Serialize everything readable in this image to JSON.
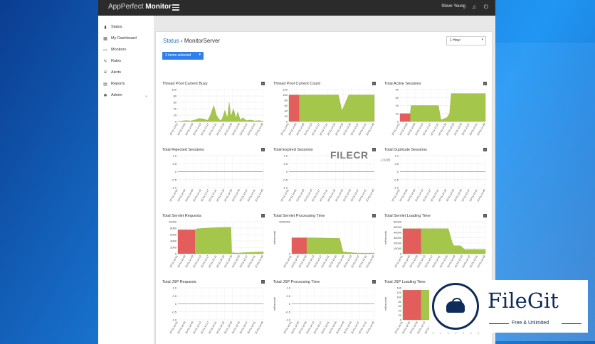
{
  "app": {
    "brand_light": "AppPerfect",
    "brand_bold": "Monitor",
    "user": "Steve Young"
  },
  "icons": {
    "menu": "hamburger-icon",
    "bell": "bell-icon",
    "power": "power-icon"
  },
  "sidebar": {
    "items": [
      {
        "label": "Status",
        "icon": "▮"
      },
      {
        "label": "My Dashboard",
        "icon": "▦"
      },
      {
        "label": "Monitors",
        "icon": "▭"
      },
      {
        "label": "Rules",
        "icon": "✎"
      },
      {
        "label": "Alerts",
        "icon": "⍾"
      },
      {
        "label": "Reports",
        "icon": "▤"
      },
      {
        "label": "Admin",
        "icon": "✱",
        "chevron": "⌄"
      }
    ]
  },
  "breadcrumb": {
    "link": "Status",
    "sep": "›",
    "current": "MonitorServer"
  },
  "range": {
    "value": "1 Hour",
    "arrow": "▾"
  },
  "selection": {
    "label": "3 items selected",
    "arrow": "▾"
  },
  "colors": {
    "green": "#a4c64a",
    "red": "#e35d5d"
  },
  "watermark": {
    "filecr": "FILECR",
    "filecr_sub": ".com",
    "filegit": "FileGit",
    "filegit_tag": "Free & Unlimited"
  },
  "xticks": [
    "20-01-14:01",
    "20-01-14:05",
    "20-01-14:09",
    "20-01-14:13",
    "20-01-14:17",
    "20-01-14:21",
    "20-01-14:25",
    "20-01-14:29",
    "20-01-14:33",
    "20-01-14:37",
    "20-01-14:41",
    "20-01-14:46"
  ],
  "charts": [
    {
      "title": "Thread Pool Current Busy",
      "type": "area",
      "ylim": [
        0,
        100
      ],
      "yticks": [
        "100",
        "80",
        "60",
        "40",
        "20",
        "0"
      ],
      "x": [
        0,
        0.05,
        0.1,
        0.15,
        0.2,
        0.25,
        0.3,
        0.35,
        0.38,
        0.42,
        0.45,
        0.48,
        0.5,
        0.52,
        0.55,
        0.58,
        0.6,
        0.62,
        0.65,
        0.68,
        0.7,
        0.73,
        0.76,
        0.8,
        0.85,
        0.9,
        0.95,
        1
      ],
      "values": [
        0,
        2,
        3,
        2,
        5,
        10,
        8,
        4,
        20,
        50,
        20,
        8,
        3,
        10,
        35,
        10,
        60,
        15,
        40,
        10,
        30,
        5,
        12,
        3,
        5,
        2,
        3,
        1
      ]
    },
    {
      "title": "Thread Pool Current Count",
      "type": "area",
      "ylim": [
        0,
        120
      ],
      "yticks": [
        "120",
        "100",
        "80",
        "60",
        "40",
        "20",
        "0"
      ],
      "x": [
        0,
        0.1,
        0.12,
        0.5,
        0.58,
        0.62,
        0.7,
        0.74,
        1
      ],
      "values": [
        100,
        100,
        100,
        100,
        100,
        40,
        100,
        100,
        100
      ],
      "red": [
        0,
        0.12
      ]
    },
    {
      "title": "Total Active Sessions",
      "type": "area",
      "ylim": [
        0,
        40
      ],
      "yticks": [
        "40",
        "30",
        "20",
        "10",
        "0"
      ],
      "x": [
        0,
        0.12,
        0.13,
        0.45,
        0.48,
        0.55,
        0.58,
        0.6,
        1
      ],
      "values": [
        10,
        10,
        20,
        20,
        2,
        5,
        10,
        35,
        35
      ],
      "red": [
        0,
        0.12
      ]
    },
    {
      "title": "Total Rejected Sessions",
      "type": "flat",
      "ylim": [
        -1,
        1
      ],
      "yticks": [
        "1.0",
        "0.5",
        "0",
        "-0.5",
        "-1.0"
      ]
    },
    {
      "title": "Total Expired Sessions",
      "type": "flat",
      "ylim": [
        -1,
        1
      ],
      "yticks": [
        "1.0",
        "0.5",
        "0",
        "-0.5",
        "-1.0"
      ]
    },
    {
      "title": "Total Duplicate Sessions",
      "type": "flat",
      "ylim": [
        -1,
        1
      ],
      "yticks": [
        "1.0",
        "0.5",
        "0",
        "-0.5",
        "-1.0"
      ]
    },
    {
      "title": "Total Servlet Requests",
      "type": "area",
      "ylim": [
        0,
        10000
      ],
      "yticks": [
        "10000",
        "8000",
        "6000",
        "4000",
        "2000",
        "0"
      ],
      "x": [
        0,
        0.2,
        0.22,
        0.45,
        0.62,
        0.63,
        0.7,
        0.8,
        0.9,
        1
      ],
      "values": [
        7500,
        7500,
        7800,
        8200,
        8300,
        300,
        200,
        400,
        500,
        600
      ],
      "red": [
        0,
        0.2
      ]
    },
    {
      "title": "Total Servlet Processing Time",
      "type": "area",
      "ylim": [
        0,
        5000000
      ],
      "yticks": [
        "5000000",
        "0"
      ],
      "ylabel": "milliseconds",
      "x": [
        0,
        0.18,
        0.2,
        0.58,
        0.62,
        0.7,
        0.8,
        1
      ],
      "values": [
        2500000,
        2500000,
        2500000,
        2400000,
        300000,
        200000,
        100000,
        100000
      ],
      "red": [
        0,
        0.18
      ]
    },
    {
      "title": "Total Servlet Loading Time",
      "type": "area",
      "ylim": [
        0,
        60000
      ],
      "yticks": [
        "60000",
        "50000",
        "40000",
        "30000",
        "20000",
        "10000",
        "0"
      ],
      "ylabel": "milliseconds",
      "x": [
        0,
        0.22,
        0.24,
        0.55,
        0.6,
        0.62,
        0.7,
        0.75,
        1
      ],
      "values": [
        47000,
        47000,
        47000,
        47000,
        20000,
        15000,
        15000,
        8000,
        8000
      ],
      "red": [
        0,
        0.22
      ]
    },
    {
      "title": "Total JSP Requests",
      "type": "flat",
      "ylim": [
        -1,
        1
      ],
      "yticks": [
        "1.0",
        "0.5",
        "0",
        "-0.5",
        "-1.0"
      ]
    },
    {
      "title": "Total JSP Processing Time",
      "type": "flat",
      "ylim": [
        -1,
        1
      ],
      "yticks": [
        "1.0",
        "0.5",
        "0",
        "-0.5",
        "-1.0"
      ],
      "ylabel": "milliseconds"
    },
    {
      "title": "Total JSP Loading Time",
      "type": "area",
      "ylim": [
        0,
        140
      ],
      "yticks": [
        "140",
        "120",
        "100",
        "80",
        "60",
        "40",
        "20",
        "0"
      ],
      "ylabel": "milliseconds",
      "x": [
        0,
        0.22,
        0.24,
        0.6
      ],
      "values": [
        130,
        130,
        130,
        130
      ],
      "red": [
        0,
        0.22
      ]
    }
  ]
}
